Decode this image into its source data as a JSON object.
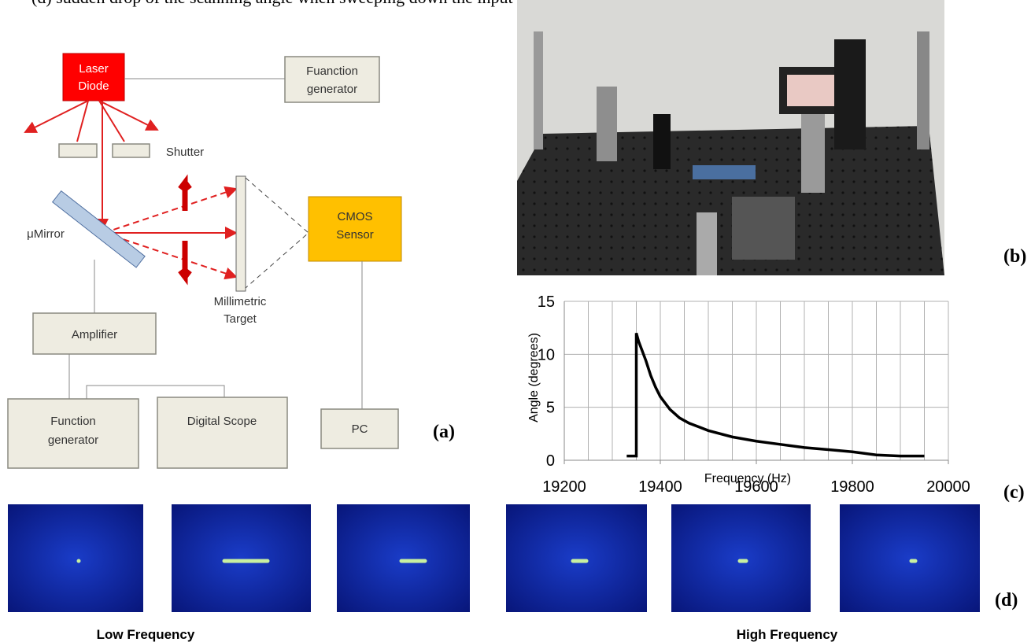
{
  "caption": "(d) sudden drop of the scanning angle when sweeping down the input frequency.",
  "panel_a": {
    "label": "(a)",
    "nodes": [
      {
        "lines": [
          "Laser",
          "Diode"
        ]
      },
      {
        "lines": [
          "Fuanction",
          "generator"
        ]
      },
      {
        "lines": [
          "Shutter"
        ]
      },
      {
        "lines": [
          "μMirror"
        ]
      },
      {
        "lines": [
          "Millimetric",
          "Target"
        ]
      },
      {
        "lines": [
          "CMOS",
          "Sensor"
        ]
      },
      {
        "lines": [
          "Amplifier"
        ]
      },
      {
        "lines": [
          "Function",
          "generator"
        ]
      },
      {
        "lines": [
          "Digital Scope"
        ]
      },
      {
        "lines": [
          "PC"
        ]
      }
    ]
  },
  "panel_b": {
    "label": "(b)"
  },
  "chart_data": {
    "type": "line",
    "label": "(c)",
    "x_label": "Frequency (Hz)",
    "y_label": "Angle (degrees)",
    "x": [
      19330,
      19350,
      19350,
      19355,
      19360,
      19370,
      19380,
      19390,
      19400,
      19420,
      19440,
      19460,
      19500,
      19550,
      19600,
      19650,
      19700,
      19750,
      19800,
      19850,
      19900,
      19950
    ],
    "values": [
      0.4,
      0.4,
      12,
      11.2,
      10.6,
      9.4,
      8.0,
      6.9,
      6.0,
      4.8,
      4.0,
      3.5,
      2.8,
      2.2,
      1.8,
      1.5,
      1.2,
      1.0,
      0.8,
      0.5,
      0.4,
      0.4
    ],
    "color": "#000000",
    "xlim": [
      19200,
      20000
    ],
    "xticks": [
      19200,
      19400,
      19600,
      19800,
      20000
    ],
    "ylim": [
      0,
      15
    ],
    "yticks": [
      0,
      5,
      10,
      15
    ],
    "grid": true
  },
  "panel_d": {
    "label": "(d)",
    "captions": [
      "Low Frequency",
      "High Frequency"
    ]
  }
}
